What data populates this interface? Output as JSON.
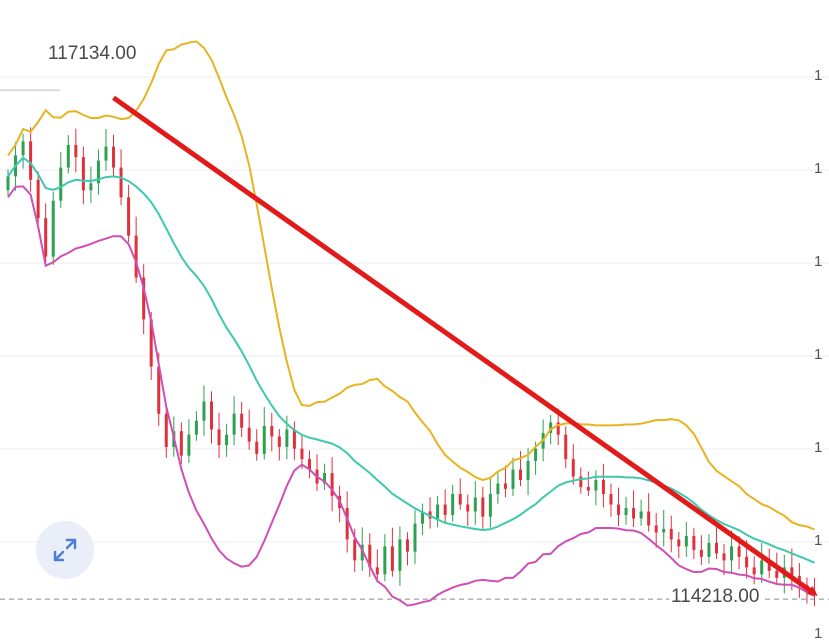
{
  "colors": {
    "up": "#2ea04f",
    "down": "#e0303c",
    "upper_band": "#e6b422",
    "middle_band": "#3cc9ae",
    "lower_band": "#cf4fb6",
    "trend_arrow": "#e21a1a",
    "grid": "#eeeeee"
  },
  "labels": {
    "high": "117134.00",
    "low": "114218.00"
  },
  "axis_ticks": [
    "1",
    "1",
    "1",
    "1",
    "1",
    "1",
    "1"
  ],
  "expand_icon": "expand-diagonal-icon",
  "chart_data": {
    "type": "candlestick",
    "title": "",
    "xlabel": "",
    "ylabel": "",
    "ylim": [
      114150,
      117650
    ],
    "visible_high": 117134.0,
    "visible_low": 114218.0,
    "grid": true,
    "close_series": [
      116640,
      116760,
      116840,
      116620,
      116400,
      116180,
      116500,
      116690,
      116820,
      116750,
      116560,
      116600,
      116730,
      116810,
      116690,
      116520,
      116300,
      116060,
      115820,
      115550,
      115280,
      115090,
      115180,
      115040,
      115160,
      115240,
      115350,
      115190,
      115100,
      115160,
      115280,
      115200,
      115120,
      115050,
      115210,
      115150,
      115090,
      115190,
      115080,
      115020,
      114960,
      114880,
      114940,
      114810,
      114740,
      114560,
      114440,
      114530,
      114400,
      114360,
      114520,
      114380,
      114560,
      114490,
      114650,
      114720,
      114680,
      114760,
      114700,
      114820,
      114760,
      114720,
      114800,
      114690,
      114820,
      114880,
      114850,
      114960,
      114900,
      115010,
      115080,
      115170,
      115230,
      115160,
      115020,
      114920,
      114860,
      114840,
      114900,
      114820,
      114760,
      114700,
      114740,
      114680,
      114720,
      114640,
      114600,
      114620,
      114560,
      114520,
      114580,
      114500,
      114460,
      114540,
      114480,
      114440,
      114520,
      114460,
      114400,
      114360,
      114440,
      114380,
      114340,
      114400,
      114350,
      114300,
      114260,
      114240
    ],
    "bands": {
      "window": 20,
      "multiplier": 2
    },
    "trend_arrow": {
      "from": {
        "index": 14,
        "price": 117090
      },
      "to": {
        "index": 107,
        "price": 114250
      }
    }
  }
}
